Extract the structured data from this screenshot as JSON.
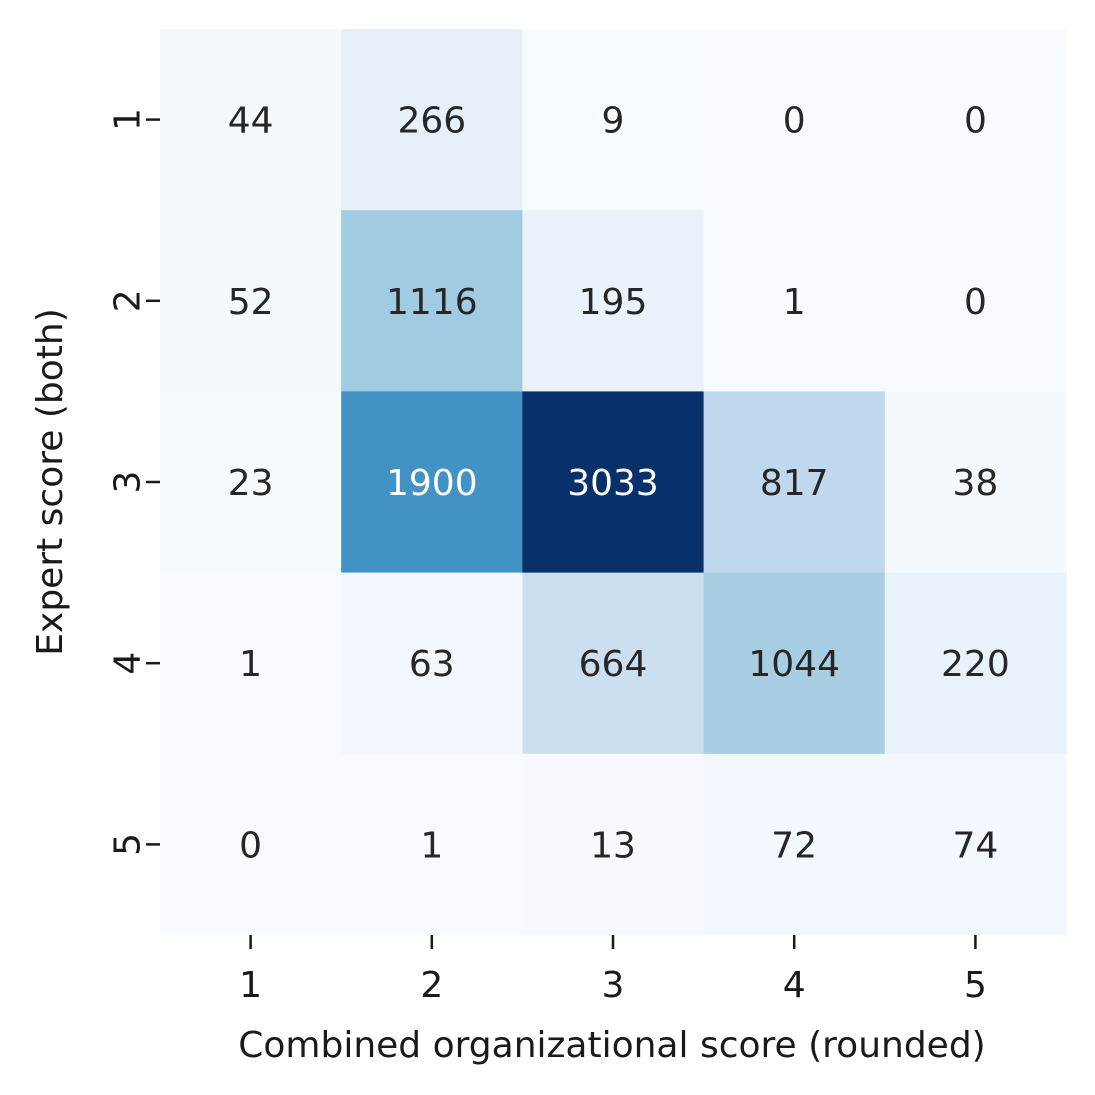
{
  "chart_data": {
    "type": "heatmap",
    "title": "",
    "xlabel": "Combined organizational score (rounded)",
    "ylabel": "Expert score (both)",
    "x_categories": [
      "1",
      "2",
      "3",
      "4",
      "5"
    ],
    "y_categories": [
      "1",
      "2",
      "3",
      "4",
      "5"
    ],
    "values": [
      [
        44,
        266,
        9,
        0,
        0
      ],
      [
        52,
        1116,
        195,
        1,
        0
      ],
      [
        23,
        1900,
        3033,
        817,
        38
      ],
      [
        1,
        63,
        664,
        1044,
        220
      ],
      [
        0,
        1,
        13,
        72,
        74
      ]
    ],
    "colormap": "Blues",
    "vmin": 0,
    "vmax": 3033,
    "annotations": true,
    "colorbar": false,
    "grid": false,
    "colors": {
      "low": "#f7fbff",
      "high": "#08306b",
      "text_dark": "#262626",
      "text_light": "#ffffff"
    }
  }
}
